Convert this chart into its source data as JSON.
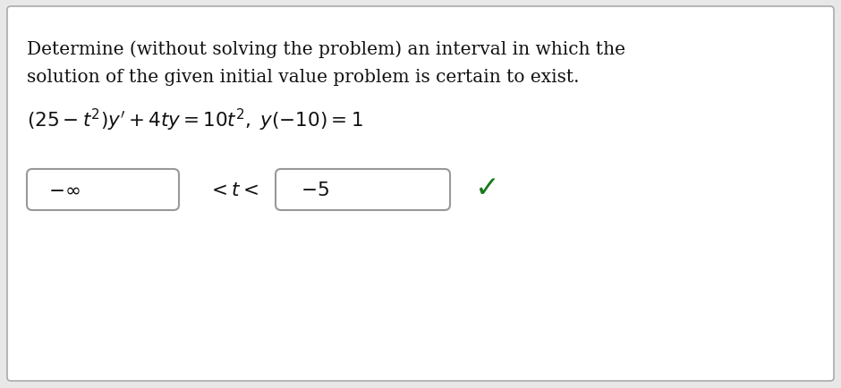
{
  "bg_color": "#e8e8e8",
  "border_color": "#aaaaaa",
  "box_border_color": "#999999",
  "text_color": "#111111",
  "green_color": "#1a7a1a",
  "paragraph_text_line1": "Determine (without solving the problem) an interval in which the",
  "paragraph_text_line2": "solution of the given initial value problem is certain to exist.",
  "equation": "$(25 - t^2)y^{\\prime} + 4ty = 10t^2, \\; y(-10) = 1$",
  "box1_content": "$-\\infty$",
  "box2_content": "$-5$",
  "between_text": "$< t <$",
  "checkmark": "✓",
  "font_size_para": 14.5,
  "font_size_eq": 15.5,
  "font_size_box": 15.5,
  "font_size_check": 24,
  "white": "#ffffff"
}
